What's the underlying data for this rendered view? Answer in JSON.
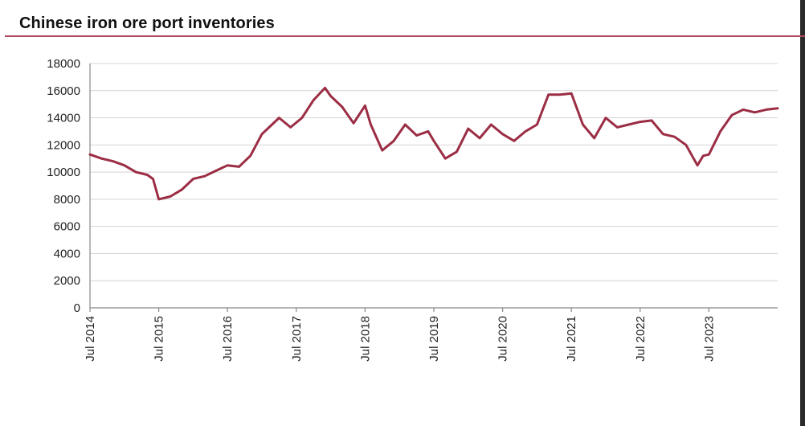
{
  "chart_data": {
    "type": "line",
    "title": "Chinese iron ore port inventories",
    "xlabel": "",
    "ylabel": "",
    "ylim": [
      0,
      18000
    ],
    "yticks": [
      0,
      2000,
      4000,
      6000,
      8000,
      10000,
      12000,
      14000,
      16000,
      18000
    ],
    "xlim": [
      "2014-07",
      "2024-07"
    ],
    "xticks": [
      "Jul 2014",
      "Jul 2015",
      "Jul 2016",
      "Jul 2017",
      "Jul 2018",
      "Jul 2019",
      "Jul 2020",
      "Jul 2021",
      "Jul 2022",
      "Jul 2023"
    ],
    "grid": true,
    "legend": "none",
    "colors": {
      "series": "#9b2d44"
    },
    "series": [
      {
        "name": "",
        "x": [
          "2014-07",
          "2014-09",
          "2014-11",
          "2015-01",
          "2015-03",
          "2015-05",
          "2015-06",
          "2015-07",
          "2015-09",
          "2015-11",
          "2016-01",
          "2016-03",
          "2016-05",
          "2016-07",
          "2016-09",
          "2016-11",
          "2017-01",
          "2017-02",
          "2017-04",
          "2017-06",
          "2017-08",
          "2017-10",
          "2017-12",
          "2018-01",
          "2018-03",
          "2018-05",
          "2018-07",
          "2018-08",
          "2018-10",
          "2018-12",
          "2019-02",
          "2019-04",
          "2019-06",
          "2019-07",
          "2019-09",
          "2019-11",
          "2020-01",
          "2020-03",
          "2020-05",
          "2020-07",
          "2020-09",
          "2020-11",
          "2021-01",
          "2021-03",
          "2021-05",
          "2021-07",
          "2021-09",
          "2021-11",
          "2022-01",
          "2022-03",
          "2022-05",
          "2022-07",
          "2022-09",
          "2022-11",
          "2023-01",
          "2023-03",
          "2023-05",
          "2023-06",
          "2023-07",
          "2023-09",
          "2023-11",
          "2024-01",
          "2024-03",
          "2024-05",
          "2024-07"
        ],
        "values": [
          11300,
          11000,
          10800,
          10500,
          10000,
          9800,
          9500,
          8000,
          8200,
          8700,
          9500,
          9700,
          10100,
          10500,
          10400,
          11200,
          12800,
          13200,
          14000,
          13300,
          14000,
          15300,
          16200,
          15600,
          14800,
          13600,
          14900,
          13500,
          11600,
          12300,
          13500,
          12700,
          13000,
          12300,
          11000,
          11500,
          13200,
          12500,
          13500,
          12800,
          12300,
          13000,
          13500,
          15700,
          15700,
          15800,
          13500,
          12500,
          14000,
          13300,
          13500,
          13700,
          13800,
          12800,
          12600,
          12000,
          10500,
          11200,
          11300,
          13000,
          14200,
          14600,
          14400,
          14600,
          14700
        ]
      }
    ]
  }
}
